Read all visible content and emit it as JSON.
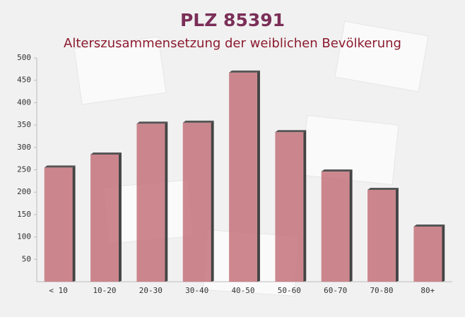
{
  "chart_data": {
    "type": "bar",
    "title": "PLZ 85391",
    "subtitle": "Alterszusammensetzung der weiblichen Bevölkerung",
    "categories": [
      "< 10",
      "10-20",
      "20-30",
      "30-40",
      "40-50",
      "50-60",
      "60-70",
      "70-80",
      "80+"
    ],
    "values": [
      255,
      284,
      353,
      355,
      467,
      334,
      246,
      205,
      123
    ],
    "color": "#c4737b",
    "ylim": [
      0,
      500
    ],
    "yticks": [
      50,
      100,
      150,
      200,
      250,
      300,
      350,
      400,
      450,
      500
    ]
  }
}
